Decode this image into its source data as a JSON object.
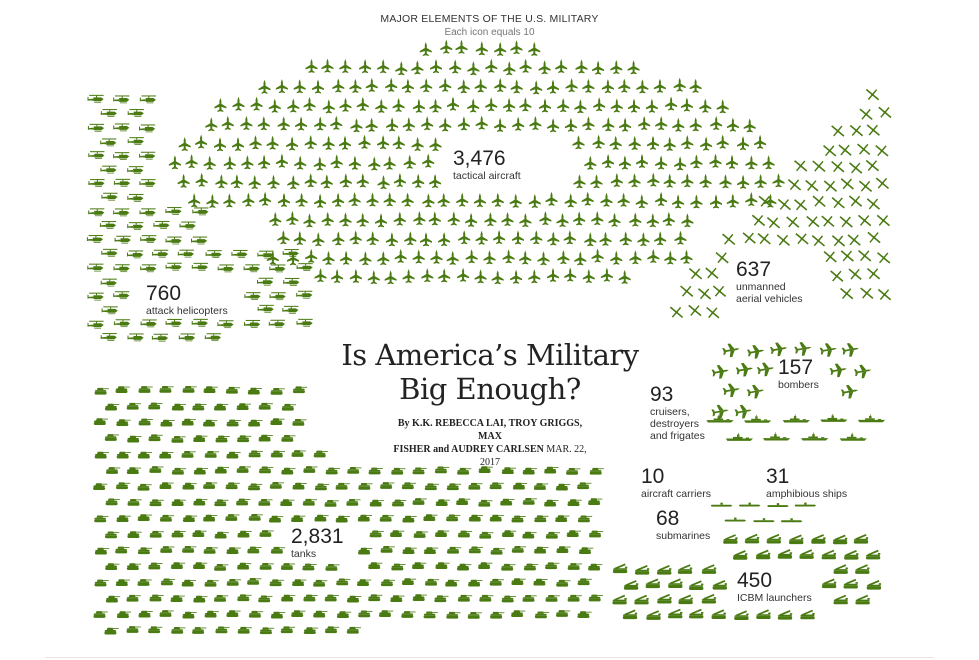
{
  "header": {
    "title": "MAJOR ELEMENTS OF THE U.S. MILITARY",
    "subtitle": "Each icon equals 10"
  },
  "headline": {
    "line1": "Is America’s Military",
    "line2": "Big Enough?"
  },
  "byline": {
    "authors_line1": "By K.K. REBECCA LAI, TROY GRIGGS, MAX",
    "authors_line2": "FISHER and AUDREY CARLSEN",
    "date": "MAR. 22, 2017"
  },
  "colors": {
    "icon": "#4a7a12",
    "text": "#222222"
  },
  "chart_data": {
    "type": "pictogram",
    "unit": "Each icon equals 10",
    "series": [
      {
        "key": "tactical_aircraft",
        "label": "tactical aircraft",
        "value": 3476,
        "display": "3,476",
        "icon": "jet-icon"
      },
      {
        "key": "tanks",
        "label": "tanks",
        "value": 2831,
        "display": "2,831",
        "icon": "tank-icon"
      },
      {
        "key": "attack_helicopters",
        "label": "attack helicopters",
        "value": 760,
        "display": "760",
        "icon": "helicopter-icon"
      },
      {
        "key": "uav",
        "label": "unmanned aerial vehicles",
        "label_line1": "unmanned",
        "label_line2": "aerial vehicles",
        "value": 637,
        "display": "637",
        "icon": "drone-icon"
      },
      {
        "key": "icbm_launchers",
        "label": "ICBM launchers",
        "value": 450,
        "display": "450",
        "icon": "launcher-icon"
      },
      {
        "key": "bombers",
        "label": "bombers",
        "value": 157,
        "display": "157",
        "icon": "bomber-icon"
      },
      {
        "key": "cruisers",
        "label": "cruisers, destroyers and frigates",
        "label_line1": "cruisers,",
        "label_line2": "destroyers",
        "label_line3": "and frigates",
        "value": 93,
        "display": "93",
        "icon": "warship-icon"
      },
      {
        "key": "submarines",
        "label": "submarines",
        "value": 68,
        "display": "68",
        "icon": "submarine-icon"
      },
      {
        "key": "amphibious_ships",
        "label": "amphibious ships",
        "value": 31,
        "display": "31",
        "icon": "amphibious-ship-icon"
      },
      {
        "key": "aircraft_carriers",
        "label": "aircraft carriers",
        "value": 10,
        "display": "10",
        "icon": "aircraft-carrier-icon"
      }
    ]
  }
}
